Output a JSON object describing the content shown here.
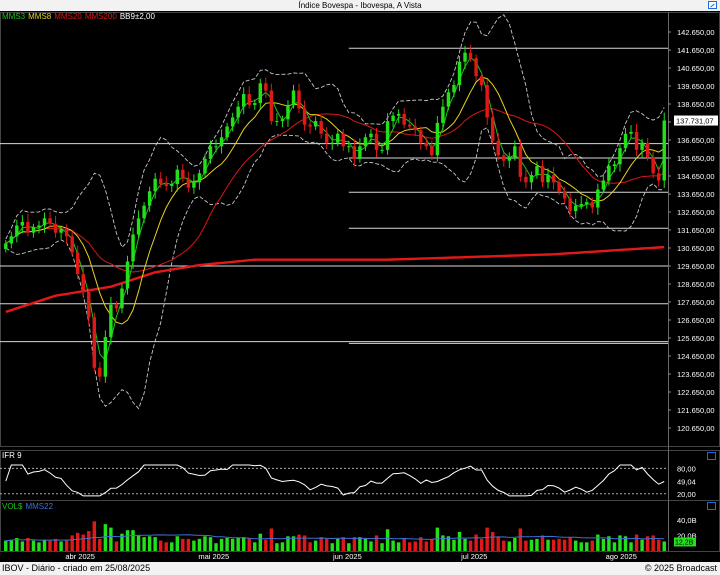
{
  "window": {
    "title": "Índice Bovespa - Ibovespa, A Vista",
    "footer_left": "IBOV - Diário - criado em 25/08/2025",
    "footer_right": "© 2025 Broadcast"
  },
  "colors": {
    "background": "#000000",
    "up_candle": "#22e01a",
    "down_candle": "#e01818",
    "mms3": "#16c916",
    "mms8": "#e8d21b",
    "mms20": "#d81616",
    "mms200": "#e31919",
    "bollinger": "#c8c8c8",
    "ifr": "#ffffff",
    "grid_line": "#d8d8d8"
  },
  "legends": {
    "price": [
      {
        "label": "MMS3",
        "color": "#16c916"
      },
      {
        "label": "MMS8",
        "color": "#e8d21b"
      },
      {
        "label": "MMS20",
        "color": "#d81616"
      },
      {
        "label": "MMS200",
        "color": "#d81616"
      },
      {
        "label": "BB9±2,00",
        "color": "#ffffff"
      }
    ],
    "ifr": [
      {
        "label": "IFR 9",
        "color": "#ffffff"
      }
    ],
    "volume": [
      {
        "label": "VOL$",
        "color": "#16c916"
      },
      {
        "label": "MMS22",
        "color": "#3f6fd8"
      }
    ]
  },
  "chart_data": [
    {
      "type": "candlestick",
      "title": "Índice Bovespa - Ibovespa, A Vista",
      "ylim": [
        119650,
        143650
      ],
      "ytick_labels": [
        "142.650,00",
        "141.650,00",
        "140.650,00",
        "139.650,00",
        "138.650,00",
        "137.650,00",
        "136.650,00",
        "135.650,00",
        "134.650,00",
        "133.650,00",
        "132.650,00",
        "131.650,00",
        "130.650,00",
        "129.650,00",
        "128.650,00",
        "127.650,00",
        "126.650,00",
        "125.650,00",
        "124.650,00",
        "123.650,00",
        "122.650,00",
        "121.650,00",
        "120.650,00"
      ],
      "ytick_values": [
        142650,
        141650,
        140650,
        139650,
        138650,
        137650,
        136650,
        135650,
        134650,
        133650,
        132650,
        131650,
        130650,
        129650,
        128650,
        127650,
        126650,
        125650,
        124650,
        123650,
        122650,
        121650,
        120650
      ],
      "x_month_labels": [
        "abr 2025",
        "mai 2025",
        "jun 2025",
        "jul 2025",
        "ago 2025"
      ],
      "x_month_positions": [
        12,
        32,
        52,
        71,
        93
      ],
      "current_price_label": "137.731,07",
      "current_price": 137731.07,
      "horizontal_levels": [
        {
          "value": 141750,
          "from": "jun 2025"
        },
        {
          "value": 136450,
          "from": "start"
        },
        {
          "value": 135650,
          "from": "jun 2025"
        },
        {
          "value": 133750,
          "from": "jun 2025"
        },
        {
          "value": 131750,
          "from": "jun 2025"
        },
        {
          "value": 129650,
          "from": "start"
        },
        {
          "value": 127550,
          "from": "start"
        },
        {
          "value": 125450,
          "from": "start"
        },
        {
          "value": 125350,
          "from": "jun 2025"
        }
      ],
      "closes": [
        130900,
        131300,
        131900,
        132100,
        131500,
        131800,
        131900,
        132300,
        132000,
        131500,
        131700,
        131300,
        130400,
        129200,
        128200,
        126800,
        124000,
        123500,
        125700,
        127500,
        127300,
        128400,
        129900,
        131400,
        132300,
        133000,
        133800,
        134500,
        134200,
        134100,
        134200,
        135000,
        134500,
        134000,
        134300,
        134800,
        135600,
        136300,
        136300,
        136800,
        137400,
        137900,
        138500,
        139200,
        138600,
        138700,
        139800,
        139400,
        137700,
        137700,
        137800,
        138600,
        139400,
        138400,
        137500,
        137400,
        137700,
        137000,
        136500,
        136500,
        137000,
        136300,
        136300,
        135600,
        136300,
        136800,
        137000,
        136100,
        136100,
        137700,
        138000,
        138100,
        137500,
        137400,
        137200,
        136500,
        136300,
        135800,
        137600,
        138500,
        139300,
        139700,
        141000,
        141500,
        141200,
        140200,
        139700,
        137900,
        136600,
        135800,
        135500,
        135700,
        136300,
        134600,
        134300,
        134700,
        135200,
        134300,
        134700,
        134300,
        133800,
        133400,
        132700,
        133000,
        133100,
        133200,
        132900,
        133900,
        134400,
        135200,
        135300,
        136200,
        137000,
        137100,
        136100,
        136500,
        135700,
        134800,
        134400,
        137731
      ],
      "opens": [
        130600,
        130900,
        131300,
        131900,
        132100,
        131500,
        131800,
        131900,
        132300,
        132000,
        131500,
        131700,
        131300,
        130400,
        129200,
        128200,
        126800,
        124000,
        123500,
        125700,
        127500,
        127300,
        128400,
        129900,
        131400,
        132300,
        133000,
        133800,
        134500,
        134200,
        134100,
        134200,
        135000,
        134500,
        134000,
        134300,
        134800,
        135600,
        136300,
        136300,
        136800,
        137400,
        137900,
        138500,
        139200,
        138600,
        138700,
        139800,
        139400,
        137700,
        137700,
        137800,
        138600,
        139400,
        138400,
        137500,
        137400,
        137700,
        137000,
        136500,
        136500,
        137000,
        136300,
        136300,
        135600,
        136300,
        136800,
        137000,
        136100,
        136100,
        137700,
        138000,
        138100,
        137500,
        137400,
        137200,
        136500,
        136300,
        135800,
        137600,
        138500,
        139300,
        139700,
        141000,
        141500,
        141200,
        140200,
        139700,
        137900,
        136600,
        135800,
        135500,
        135700,
        136300,
        134600,
        134300,
        134700,
        135200,
        134300,
        134700,
        134300,
        133800,
        133400,
        132700,
        133000,
        133100,
        133200,
        132900,
        133900,
        134400,
        135200,
        135300,
        136200,
        137000,
        137100,
        136100,
        136500,
        135700,
        134800,
        134400
      ],
      "mms200": [
        127100,
        127200,
        127300,
        127400,
        127500,
        127600,
        127700,
        127800,
        127900,
        128000,
        128050,
        128100,
        128150,
        128200,
        128250,
        128300,
        128350,
        128400,
        128450,
        128500,
        128600,
        128700,
        128800,
        128900,
        129000,
        129100,
        129200,
        129300,
        129350,
        129400,
        129450,
        129500,
        129550,
        129600,
        129650,
        129700,
        129730,
        129760,
        129790,
        129820,
        129850,
        129880,
        129910,
        129940,
        129970,
        130000,
        130000,
        130000,
        130000,
        130000,
        130000,
        130000,
        130000,
        130000,
        130000,
        130000,
        130000,
        130000,
        130000,
        130000,
        130000,
        130000,
        130000,
        130000,
        130000,
        130000,
        130000,
        130000,
        130000,
        130000,
        130010,
        130020,
        130030,
        130040,
        130050,
        130060,
        130070,
        130080,
        130090,
        130100,
        130110,
        130120,
        130130,
        130140,
        130150,
        130160,
        130170,
        130180,
        130190,
        130200,
        130210,
        130220,
        130230,
        130240,
        130250,
        130260,
        130270,
        130280,
        130290,
        130300,
        130320,
        130340,
        130360,
        130380,
        130400,
        130420,
        130440,
        130460,
        130480,
        130500,
        130520,
        130540,
        130560,
        130580,
        130600,
        130620,
        130640,
        130660,
        130680,
        130700
      ]
    },
    {
      "type": "line",
      "title": "IFR 9",
      "ylim": [
        10,
        95
      ],
      "ytick_labels": [
        "80,00",
        "49,04",
        "20,00"
      ],
      "ytick_values": [
        80,
        49.04,
        20
      ],
      "current_value": 49.04
    },
    {
      "type": "bar",
      "title": "VOL$",
      "ylim": [
        0,
        50
      ],
      "ytick_labels": [
        "40,0B",
        "20,0B"
      ],
      "ytick_values": [
        40,
        20
      ],
      "current_value_label": "12,2B",
      "current_value": 12.2,
      "ma_label": "MMS22"
    }
  ]
}
